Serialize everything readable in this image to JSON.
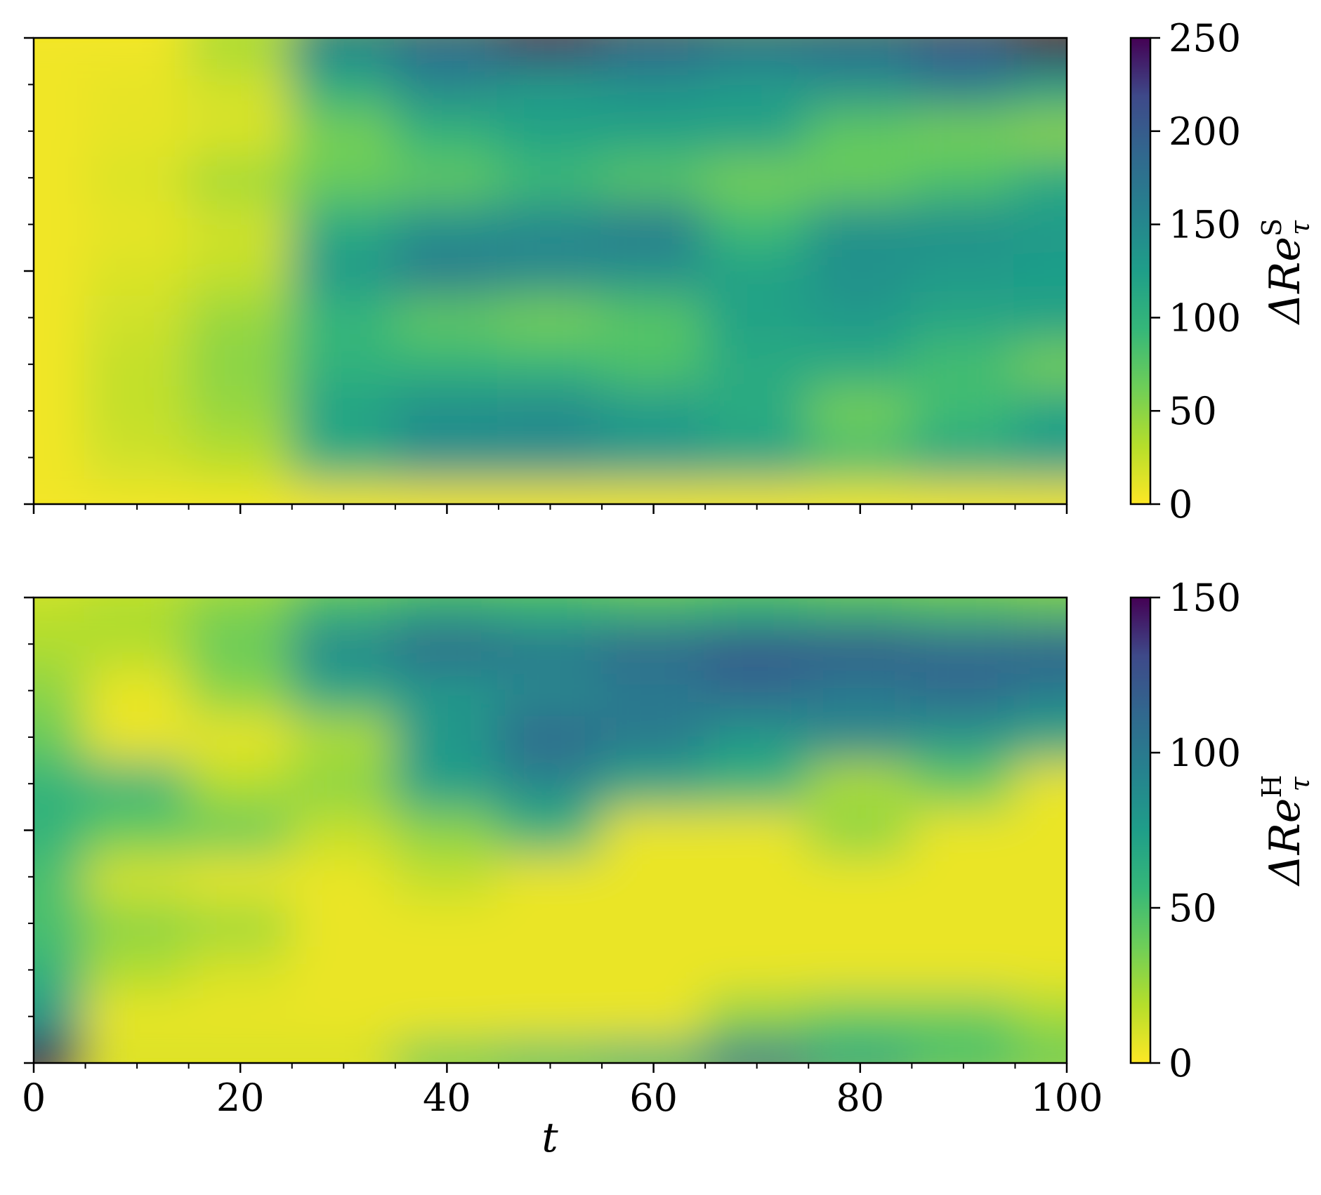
{
  "figure": {
    "panels": [
      {
        "id": "top",
        "colorbar": {
          "label": "ΔRe",
          "label_super": "S",
          "label_sub": "τ",
          "ticks": [
            "0",
            "50",
            "100",
            "150",
            "200",
            "250"
          ],
          "range": [
            0,
            250
          ]
        }
      },
      {
        "id": "bottom",
        "colorbar": {
          "label": "ΔRe",
          "label_super": "H",
          "label_sub": "τ",
          "ticks": [
            "0",
            "50",
            "100",
            "150"
          ],
          "range": [
            0,
            150
          ]
        }
      }
    ],
    "x_axis": {
      "label": "t",
      "ticks": [
        "0",
        "20",
        "40",
        "60",
        "80",
        "100"
      ],
      "range": [
        0,
        100
      ]
    }
  },
  "chart_data": [
    {
      "type": "heatmap",
      "colormap": "viridis_r",
      "x": {
        "label": "",
        "range": [
          0,
          100
        ]
      },
      "y": {
        "label": "",
        "range": [
          0,
          1
        ]
      },
      "z_range": [
        0,
        250
      ],
      "colorbar_ticks": [
        0,
        50,
        100,
        150,
        200,
        250
      ],
      "approx_values": {
        "x": [
          0,
          10,
          20,
          30,
          40,
          50,
          60,
          70,
          80,
          90,
          100
        ],
        "y": [
          0,
          0.1,
          0.2,
          0.3,
          0.4,
          0.5,
          0.6,
          0.7,
          0.8,
          0.9,
          1.0
        ],
        "z": [
          [
            5,
            5,
            5,
            5,
            5,
            5,
            5,
            5,
            5,
            5,
            5
          ],
          [
            5,
            20,
            30,
            110,
            140,
            140,
            130,
            120,
            90,
            115,
            125
          ],
          [
            5,
            25,
            45,
            120,
            145,
            150,
            130,
            110,
            60,
            90,
            120
          ],
          [
            5,
            25,
            50,
            100,
            100,
            95,
            80,
            110,
            110,
            85,
            60
          ],
          [
            5,
            20,
            45,
            95,
            70,
            60,
            75,
            120,
            130,
            115,
            120
          ],
          [
            5,
            15,
            25,
            130,
            165,
            150,
            140,
            120,
            140,
            130,
            125
          ],
          [
            5,
            10,
            20,
            110,
            140,
            150,
            165,
            90,
            140,
            140,
            130
          ],
          [
            5,
            15,
            40,
            65,
            70,
            90,
            75,
            60,
            65,
            80,
            110
          ],
          [
            5,
            10,
            15,
            60,
            100,
            120,
            120,
            120,
            70,
            60,
            50
          ],
          [
            5,
            10,
            20,
            110,
            150,
            130,
            140,
            130,
            140,
            160,
            130
          ],
          [
            5,
            5,
            40,
            160,
            190,
            230,
            200,
            180,
            190,
            210,
            250
          ]
        ]
      }
    },
    {
      "type": "heatmap",
      "colormap": "viridis_r",
      "x": {
        "label": "t",
        "range": [
          0,
          100
        ]
      },
      "y": {
        "label": "",
        "range": [
          0,
          1
        ]
      },
      "z_range": [
        0,
        150
      ],
      "colorbar_ticks": [
        0,
        50,
        100,
        150
      ],
      "approx_values": {
        "x": [
          0,
          10,
          20,
          30,
          40,
          50,
          60,
          70,
          80,
          90,
          100
        ],
        "y": [
          0,
          0.1,
          0.2,
          0.3,
          0.4,
          0.5,
          0.6,
          0.7,
          0.8,
          0.9,
          1.0
        ],
        "z": [
          [
            150,
            10,
            10,
            10,
            40,
            50,
            60,
            100,
            70,
            50,
            40
          ],
          [
            80,
            5,
            5,
            5,
            5,
            5,
            5,
            30,
            40,
            40,
            25
          ],
          [
            60,
            20,
            10,
            5,
            5,
            5,
            5,
            5,
            5,
            5,
            5
          ],
          [
            50,
            30,
            25,
            5,
            5,
            5,
            5,
            5,
            5,
            5,
            5
          ],
          [
            50,
            10,
            5,
            5,
            15,
            5,
            5,
            5,
            5,
            5,
            5
          ],
          [
            60,
            40,
            40,
            15,
            30,
            60,
            5,
            5,
            30,
            5,
            5
          ],
          [
            60,
            60,
            20,
            30,
            75,
            90,
            70,
            60,
            20,
            40,
            5
          ],
          [
            40,
            5,
            5,
            20,
            80,
            110,
            100,
            80,
            90,
            80,
            70
          ],
          [
            30,
            5,
            30,
            70,
            80,
            90,
            100,
            110,
            100,
            110,
            100
          ],
          [
            20,
            20,
            40,
            90,
            110,
            100,
            110,
            120,
            120,
            110,
            115
          ],
          [
            15,
            20,
            30,
            50,
            60,
            55,
            50,
            55,
            50,
            45,
            40
          ]
        ]
      }
    }
  ]
}
